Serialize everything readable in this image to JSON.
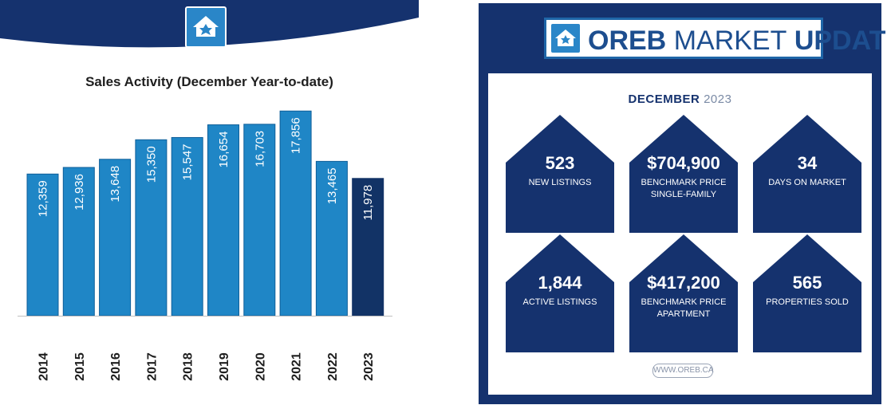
{
  "chart_data": {
    "type": "bar",
    "title": "Sales Activity (December Year-to-date)",
    "categories": [
      "2014",
      "2015",
      "2016",
      "2017",
      "2018",
      "2019",
      "2020",
      "2021",
      "2022",
      "2023"
    ],
    "values": [
      12359,
      12936,
      13648,
      15350,
      15547,
      16654,
      16703,
      17856,
      13465,
      11978
    ],
    "value_labels": [
      "12,359",
      "12,936",
      "13,648",
      "15,350",
      "15,547",
      "16,654",
      "16,703",
      "17,856",
      "13,465",
      "11,978"
    ],
    "xlabel": "",
    "ylabel": "",
    "ylim": [
      0,
      18500
    ],
    "grid": false,
    "legend": "none",
    "colors": {
      "bar": "#1f86c6",
      "highlight_bar": "#123366",
      "bar_border": "#0f5f99",
      "banner": "#15326e"
    },
    "highlight_category": "2023"
  },
  "infographic": {
    "header": {
      "logo_icon": "oreb-house-logo-icon",
      "title_bold_1": "OREB",
      "title_thin": "MARKET",
      "title_bold_2": "UPDATE"
    },
    "period": {
      "month": "DECEMBER",
      "year": "2023"
    },
    "metrics": [
      {
        "value": "523",
        "label": "NEW LISTINGS"
      },
      {
        "value": "$704,900",
        "label": "BENCHMARK PRICE SINGLE-FAMILY"
      },
      {
        "value": "34",
        "label": "DAYS ON MARKET"
      },
      {
        "value": "1,844",
        "label": "ACTIVE LISTINGS"
      },
      {
        "value": "$417,200",
        "label": "BENCHMARK PRICE APARTMENT"
      },
      {
        "value": "565",
        "label": "PROPERTIES SOLD"
      }
    ],
    "website": "WWW.OREB.CA",
    "colors": {
      "panel": "#15326e",
      "house": "#15326e",
      "accent": "#1f66a8"
    }
  },
  "left_banner": {
    "logo_icon": "oreb-house-logo-icon"
  }
}
